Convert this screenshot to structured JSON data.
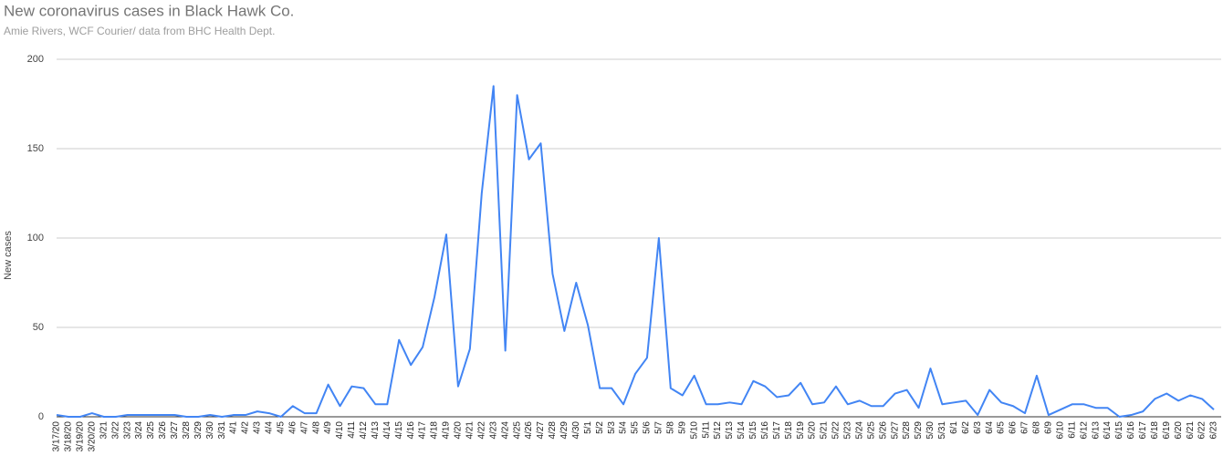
{
  "chart_data": {
    "type": "line",
    "title": "New coronavirus cases in Black Hawk Co.",
    "subtitle": "Amie Rivers, WCF Courier/ data from BHC Health Dept.",
    "y_label": "New cases",
    "color": "#4285f4",
    "grid": true,
    "ylim": [
      0,
      200
    ],
    "yticks": [
      0,
      50,
      100,
      150,
      200
    ],
    "categories": [
      "3/17/20",
      "3/18/20",
      "3/19/20",
      "3/20/20",
      "3/21",
      "3/22",
      "3/23",
      "3/24",
      "3/25",
      "3/26",
      "3/27",
      "3/28",
      "3/29",
      "3/30",
      "3/31",
      "4/1",
      "4/2",
      "4/3",
      "4/4",
      "4/5",
      "4/6",
      "4/7",
      "4/8",
      "4/9",
      "4/10",
      "4/11",
      "4/12",
      "4/13",
      "4/14",
      "4/15",
      "4/16",
      "4/17",
      "4/18",
      "4/19",
      "4/20",
      "4/21",
      "4/22",
      "4/23",
      "4/24",
      "4/25",
      "4/26",
      "4/27",
      "4/28",
      "4/29",
      "4/30",
      "5/1",
      "5/2",
      "5/3",
      "5/4",
      "5/5",
      "5/6",
      "5/7",
      "5/8",
      "5/9",
      "5/10",
      "5/11",
      "5/12",
      "5/13",
      "5/14",
      "5/15",
      "5/16",
      "5/17",
      "5/18",
      "5/19",
      "5/20",
      "5/21",
      "5/22",
      "5/23",
      "5/24",
      "5/25",
      "5/26",
      "5/27",
      "5/28",
      "5/29",
      "5/30",
      "5/31",
      "6/1",
      "6/2",
      "6/3",
      "6/4",
      "6/5",
      "6/6",
      "6/7",
      "6/8",
      "6/9",
      "6/10",
      "6/11",
      "6/12",
      "6/13",
      "6/14",
      "6/15",
      "6/16",
      "6/17",
      "6/18",
      "6/19",
      "6/20",
      "6/21",
      "6/22",
      "6/23"
    ],
    "values": [
      1,
      0,
      0,
      2,
      0,
      0,
      1,
      1,
      1,
      1,
      1,
      0,
      0,
      1,
      0,
      1,
      1,
      3,
      2,
      0,
      6,
      2,
      2,
      18,
      6,
      17,
      16,
      7,
      7,
      43,
      29,
      39,
      67,
      102,
      17,
      38,
      125,
      185,
      37,
      180,
      144,
      153,
      80,
      48,
      75,
      51,
      16,
      16,
      7,
      24,
      33,
      100,
      16,
      12,
      23,
      7,
      7,
      8,
      7,
      20,
      17,
      11,
      12,
      19,
      7,
      8,
      17,
      7,
      9,
      6,
      6,
      13,
      15,
      5,
      27,
      7,
      8,
      9,
      1,
      15,
      8,
      6,
      2,
      23,
      1,
      4,
      7,
      7,
      5,
      5,
      0,
      1,
      3,
      10,
      13,
      9,
      12,
      10,
      4
    ]
  }
}
